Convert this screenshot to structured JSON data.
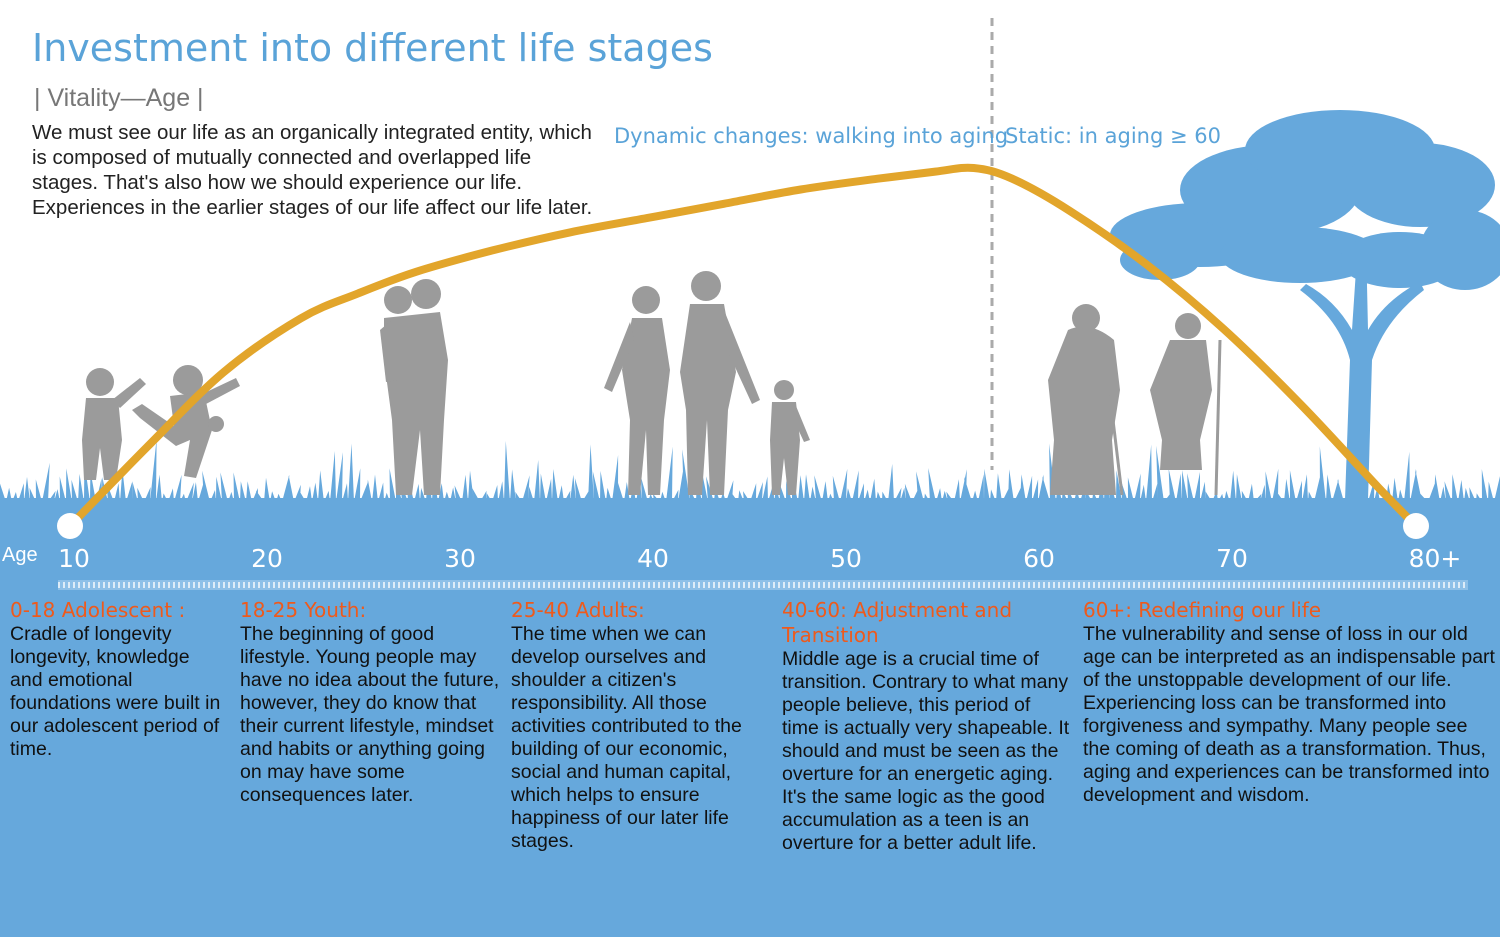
{
  "header": {
    "title": "Investment into different life stages",
    "subtitle": "| Vitality—Age |",
    "intro": "We must see our life as an organically integrated entity, which is composed of mutually connected and overlapped life stages. That's also how we should experience our life. Experiences in the earlier stages of our life affect our life later."
  },
  "phases": {
    "dynamic": "Dynamic changes: walking into aging",
    "static": "Static: in aging  ≥ 60"
  },
  "axis": {
    "label": "Age",
    "ticks": [
      "10",
      "20",
      "30",
      "40",
      "50",
      "60",
      "70",
      "80+"
    ]
  },
  "stages": [
    {
      "title": "0-18 Adolescent :",
      "text": "Cradle of longevity longevity, knowledge and emotional foundations were built in our adolescent period of time."
    },
    {
      "title": "18-25 Youth:",
      "text": "The beginning of good lifestyle. Young people may have no idea about the future, however, they do know that their current lifestyle, mindset and habits or anything going on may have some consequences later."
    },
    {
      "title": "25-40 Adults:",
      "text": "The time when we can develop ourselves and shoulder a citizen's responsibility. All those activities contributed to the building of our economic, social and human capital, which helps to ensure happiness of our later life stages."
    },
    {
      "title": "40-60:  Adjustment and Transition",
      "text": "Middle age is a crucial time of transition. Contrary to what many people believe, this period of time is actually very shapeable. It should and must be seen as the overture for an energetic aging. It's the same logic as the good accumulation as a teen is an overture for a better adult life."
    },
    {
      "title": "60+:  Redefining our life",
      "text": "The vulnerability and sense of loss in our old age can be interpreted as an indispensable part of the unstoppable development of our life. Experiencing loss can be transformed into forgiveness and sympathy. Many people see the coming of death as a transformation. Thus, aging and experiences can be transformed into development and wisdom."
    }
  ],
  "colors": {
    "ground": "#66a8dc",
    "curve": "#e2a52b",
    "title": "#5aa3d8",
    "stage_heading": "#ee5a1c",
    "silhouette": "#9b9b9b",
    "tree": "#66a8dc"
  },
  "icons": [
    "children-playing-silhouette",
    "couple-hugging-silhouette",
    "family-walking-silhouette",
    "elderly-couple-silhouette",
    "acacia-tree-silhouette"
  ],
  "chart_data": {
    "type": "line",
    "xlabel": "Age",
    "ylabel": "Vitality",
    "x_tick_labels": [
      "10",
      "20",
      "30",
      "40",
      "50",
      "60",
      "70",
      "80+"
    ],
    "xlim": [
      10,
      80
    ],
    "series": [
      {
        "x": [
          10,
          14,
          18,
          22,
          25,
          28,
          32,
          36,
          40,
          44,
          48,
          52,
          55,
          57,
          59,
          62,
          66,
          70,
          74,
          78,
          80
        ],
        "y": [
          0,
          0.22,
          0.43,
          0.58,
          0.65,
          0.71,
          0.77,
          0.82,
          0.86,
          0.9,
          0.94,
          0.97,
          0.99,
          1.0,
          0.97,
          0.88,
          0.73,
          0.55,
          0.34,
          0.11,
          0
        ]
      }
    ],
    "annotations": [
      {
        "x": 58,
        "text": "dashed divider"
      }
    ],
    "grid": false,
    "legend": "none"
  }
}
